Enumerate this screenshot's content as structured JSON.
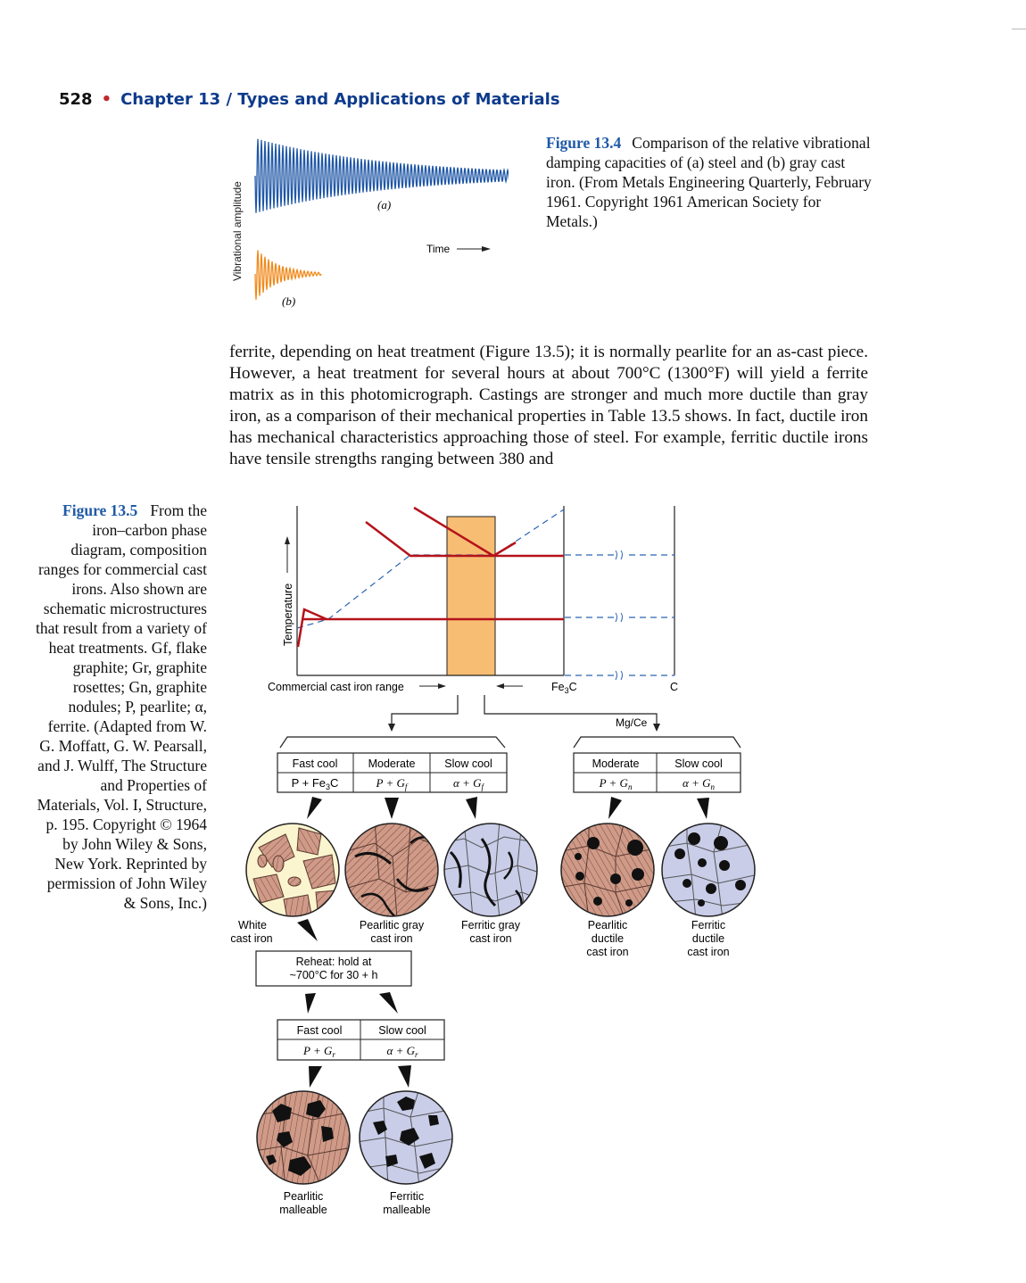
{
  "header": {
    "page_number": "528",
    "chapter": "Chapter 13",
    "separator": "/",
    "chapter_title": "Types and Applications of Materials"
  },
  "figure_13_4": {
    "y_label": "Vibrational amplitude",
    "x_label": "Time",
    "label_a": "(a)",
    "label_b": "(b)",
    "colors": {
      "steel": "#1f57a6",
      "gray_cast_iron": "#f08a1c"
    },
    "caption_label": "Figure 13.4",
    "caption_text": "Comparison of the relative vibrational damping capacities of (a) steel and (b) gray cast iron. (From Metals Engineering Quarterly, February 1961. Copyright 1961 American Society for Metals.)"
  },
  "body_text": "ferrite, depending on heat treatment (Figure 13.5); it is normally pearlite for an as-cast piece. However, a heat treatment for several hours at about 700°C (1300°F) will yield a ferrite matrix as in this photomicrograph. Castings are stronger and much more ductile than gray iron, as a comparison of their mechanical properties in Table 13.5 shows. In fact, ductile iron has mechanical characteristics approaching those of steel. For example, ferritic ductile irons have tensile strengths ranging between 380 and",
  "figure_13_5": {
    "caption_label": "Figure 13.5",
    "caption_text": "From the iron–carbon phase diagram, composition ranges for commercial cast irons. Also shown are schematic microstructures that result from a variety of heat treatments. Gf, flake graphite; Gr, graphite rosettes; Gn, graphite nodules; P, pearlite; α, ferrite. (Adapted from W. G. Moffatt, G. W. Pearsall, and J. Wulff, The Structure and Properties of Materials, Vol. I, Structure, p. 195. Copyright © 1964 by John Wiley & Sons, New York. Reprinted by permission of John Wiley & Sons, Inc.)",
    "diagram": {
      "y_axis": "Temperature",
      "range_label": "Commercial cast iron range",
      "fe3c": "Fe",
      "fe3c_sub": "3",
      "fe3c_end": "C",
      "carbon": "C",
      "mgce": "Mg/Ce",
      "left_table": {
        "headers": [
          "Fast cool",
          "Moderate",
          "Slow cool"
        ],
        "cells": [
          {
            "main": "P + Fe",
            "sub": "3",
            "tail": "C"
          },
          {
            "main": "P + G",
            "sub": "f",
            "tail": ""
          },
          {
            "main": "α + G",
            "sub": "f",
            "tail": ""
          }
        ]
      },
      "right_table": {
        "headers": [
          "Moderate",
          "Slow cool"
        ],
        "cells": [
          {
            "main": "P + G",
            "sub": "n",
            "tail": ""
          },
          {
            "main": "α + G",
            "sub": "n",
            "tail": ""
          }
        ]
      },
      "reheat": [
        "Reheat: hold at",
        "~700°C for 30 + h"
      ],
      "bottom_table": {
        "headers": [
          "Fast cool",
          "Slow cool"
        ],
        "cells": [
          {
            "main": "P + G",
            "sub": "r",
            "tail": ""
          },
          {
            "main": "α + G",
            "sub": "r",
            "tail": ""
          }
        ]
      },
      "microstructures": {
        "white": [
          "White",
          "cast iron"
        ],
        "pearlitic_gray": [
          "Pearlitic gray",
          "cast iron"
        ],
        "ferritic_gray": [
          "Ferritic gray",
          "cast iron"
        ],
        "pearlitic_ductile": [
          "Pearlitic",
          "ductile",
          "cast iron"
        ],
        "ferritic_ductile": [
          "Ferritic",
          "ductile",
          "cast iron"
        ],
        "pearlitic_malleable": [
          "Pearlitic",
          "malleable"
        ],
        "ferritic_malleable": [
          "Ferritic",
          "malleable"
        ]
      },
      "colors": {
        "phase_line": "#b5121b",
        "dashed": "#2a63b5",
        "range_band": "#f7bd73",
        "pearlite": "#cf9a88",
        "ferrite": "#c9cde8",
        "cementite": "#fbf5cf"
      }
    }
  }
}
